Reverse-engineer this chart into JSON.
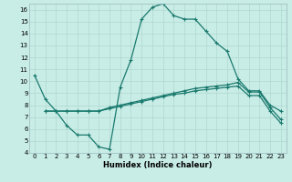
{
  "xlabel": "Humidex (Indice chaleur)",
  "xlim": [
    -0.5,
    23.5
  ],
  "ylim": [
    4,
    16.5
  ],
  "xticks": [
    0,
    1,
    2,
    3,
    4,
    5,
    6,
    7,
    8,
    9,
    10,
    11,
    12,
    13,
    14,
    15,
    16,
    17,
    18,
    19,
    20,
    21,
    22,
    23
  ],
  "yticks": [
    4,
    5,
    6,
    7,
    8,
    9,
    10,
    11,
    12,
    13,
    14,
    15,
    16
  ],
  "bg_color": "#c8ece6",
  "line_color": "#1a7a6e",
  "grid_color": "#b0d8d0",
  "line1_x": [
    0,
    1,
    2,
    3,
    4,
    5,
    6,
    7,
    8,
    9,
    10,
    11,
    12,
    13,
    14,
    15,
    16,
    17,
    18,
    19,
    20,
    21,
    22,
    23
  ],
  "line1_y": [
    10.5,
    8.5,
    7.5,
    6.3,
    5.5,
    5.5,
    4.5,
    4.3,
    9.5,
    11.8,
    15.2,
    16.2,
    16.5,
    15.5,
    15.2,
    15.2,
    14.2,
    13.2,
    12.5,
    10.2,
    9.2,
    9.2,
    8.0,
    7.5
  ],
  "line2_x": [
    1,
    2,
    3,
    4,
    5,
    6,
    7,
    8,
    9,
    10,
    11,
    12,
    13,
    14,
    15,
    16,
    17,
    18,
    19,
    20,
    21,
    22,
    23
  ],
  "line2_y": [
    7.5,
    7.5,
    7.5,
    7.5,
    7.5,
    7.5,
    7.8,
    8.0,
    8.2,
    8.4,
    8.6,
    8.8,
    9.0,
    9.2,
    9.4,
    9.5,
    9.6,
    9.7,
    9.9,
    9.1,
    9.1,
    7.8,
    6.8
  ],
  "line3_x": [
    1,
    2,
    3,
    4,
    5,
    6,
    7,
    8,
    9,
    10,
    11,
    12,
    13,
    14,
    15,
    16,
    17,
    18,
    19,
    20,
    21,
    22,
    23
  ],
  "line3_y": [
    7.5,
    7.5,
    7.5,
    7.5,
    7.5,
    7.5,
    7.7,
    7.9,
    8.1,
    8.3,
    8.5,
    8.7,
    8.9,
    9.0,
    9.2,
    9.3,
    9.4,
    9.5,
    9.6,
    8.8,
    8.8,
    7.5,
    6.5
  ],
  "tick_fontsize": 5.0,
  "xlabel_fontsize": 6.0,
  "linewidth": 0.9,
  "markersize": 3.0
}
